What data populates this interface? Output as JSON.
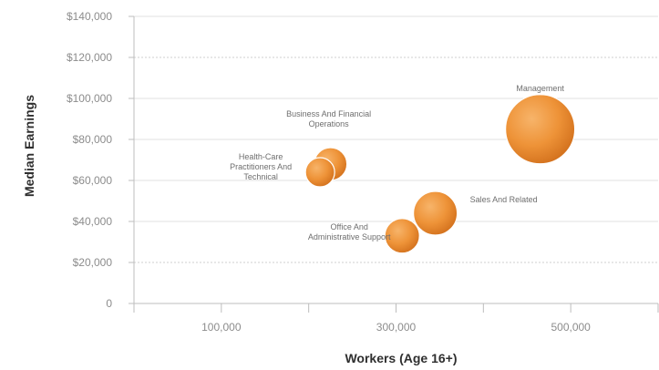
{
  "chart_data": {
    "type": "scatter",
    "title": "",
    "xlabel": "Workers (Age 16+)",
    "ylabel": "Median Earnings",
    "x_ticks": [
      {
        "value": 100000,
        "label": "100,000"
      },
      {
        "value": 300000,
        "label": "300,000"
      },
      {
        "value": 500000,
        "label": "500,000"
      }
    ],
    "y_ticks": [
      {
        "value": 0,
        "label": "0"
      },
      {
        "value": 20000,
        "label": "$20,000"
      },
      {
        "value": 40000,
        "label": "$40,000"
      },
      {
        "value": 60000,
        "label": "$60,000"
      },
      {
        "value": 80000,
        "label": "$80,000"
      },
      {
        "value": 100000,
        "label": "$100,000"
      },
      {
        "value": 120000,
        "label": "$120,000"
      },
      {
        "value": 140000,
        "label": "$140,000"
      }
    ],
    "xlim": [
      0,
      600000
    ],
    "ylim": [
      0,
      140000
    ],
    "grid": true,
    "bubble_color": "#e8862b",
    "points": [
      {
        "label": [
          "Management"
        ],
        "x": 465000,
        "y": 85000,
        "size": 38
      },
      {
        "label": [
          "Business And Financial",
          "Operations"
        ],
        "x": 225000,
        "y": 68000,
        "size": 18
      },
      {
        "label": [
          "Health-Care",
          "Practitioners And",
          "Technical"
        ],
        "x": 213000,
        "y": 64000,
        "size": 16
      },
      {
        "label": [
          "Sales And Related"
        ],
        "x": 345000,
        "y": 44000,
        "size": 24
      },
      {
        "label": [
          "Office And",
          "Administrative Support"
        ],
        "x": 307000,
        "y": 33000,
        "size": 19
      }
    ]
  }
}
